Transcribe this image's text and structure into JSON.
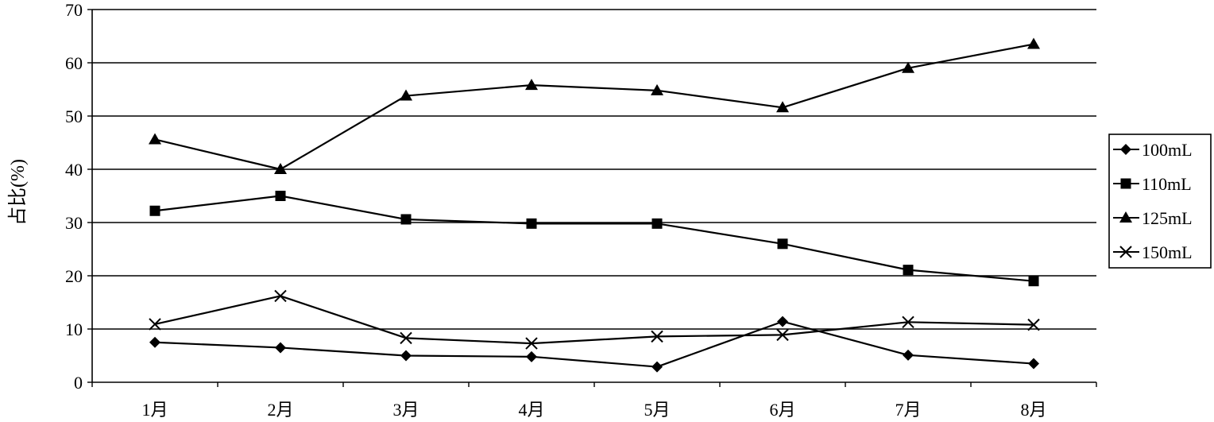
{
  "chart_data": {
    "type": "line",
    "title": "",
    "xlabel": "",
    "ylabel": "占比(%)",
    "ylim": [
      0,
      70
    ],
    "yticks": [
      0,
      10,
      20,
      30,
      40,
      50,
      60,
      70
    ],
    "grid": "horizontal",
    "legend_position": "right",
    "categories": [
      "1月",
      "2月",
      "3月",
      "4月",
      "5月",
      "6月",
      "7月",
      "8月"
    ],
    "series": [
      {
        "name": "100mL",
        "marker": "diamond",
        "values": [
          7.5,
          6.5,
          5.0,
          4.8,
          2.9,
          11.4,
          5.1,
          3.5
        ]
      },
      {
        "name": "110mL",
        "marker": "square",
        "values": [
          32.2,
          35.0,
          30.6,
          29.8,
          29.8,
          26.0,
          21.1,
          19.0
        ]
      },
      {
        "name": "125mL",
        "marker": "triangle",
        "values": [
          45.6,
          40.0,
          53.8,
          55.8,
          54.8,
          51.6,
          59.0,
          63.5
        ]
      },
      {
        "name": "150mL",
        "marker": "x",
        "values": [
          10.9,
          16.2,
          8.3,
          7.3,
          8.6,
          8.9,
          11.3,
          10.8
        ]
      }
    ]
  }
}
